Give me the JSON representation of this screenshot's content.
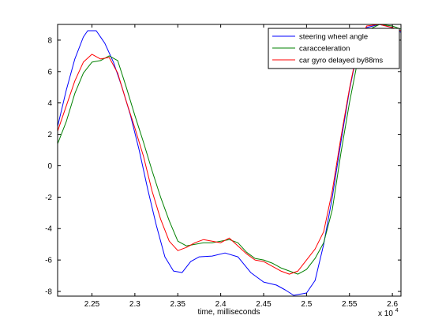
{
  "chart_data": {
    "type": "line",
    "title": "",
    "xlabel": "time, milliseconds",
    "ylabel": "",
    "x_multiplier_label": "x 10",
    "x_multiplier_exponent": "4",
    "xlim": [
      2.21,
      2.61
    ],
    "ylim": [
      -8.3,
      9.0
    ],
    "xticks": [
      "2.25",
      "2.3",
      "2.35",
      "2.4",
      "2.45",
      "2.5",
      "2.55",
      "2.6"
    ],
    "xtick_values": [
      2.25,
      2.3,
      2.35,
      2.4,
      2.45,
      2.5,
      2.55,
      2.6
    ],
    "yticks": [
      "-8",
      "-6",
      "-4",
      "-2",
      "0",
      "2",
      "4",
      "6",
      "8"
    ],
    "ytick_values": [
      -8,
      -6,
      -4,
      -2,
      0,
      2,
      4,
      6,
      8
    ],
    "grid": false,
    "legend_position": "top-right",
    "series": [
      {
        "name": "steering wheel angle",
        "color": "#0000ff",
        "points": [
          [
            2.21,
            2.5
          ],
          [
            2.22,
            4.8
          ],
          [
            2.23,
            6.8
          ],
          [
            2.24,
            8.2
          ],
          [
            2.245,
            8.6
          ],
          [
            2.255,
            8.6
          ],
          [
            2.265,
            7.8
          ],
          [
            2.275,
            6.6
          ],
          [
            2.285,
            5.0
          ],
          [
            2.295,
            3.2
          ],
          [
            2.305,
            1.0
          ],
          [
            2.315,
            -1.5
          ],
          [
            2.325,
            -3.8
          ],
          [
            2.335,
            -5.8
          ],
          [
            2.345,
            -6.7
          ],
          [
            2.355,
            -6.8
          ],
          [
            2.365,
            -6.1
          ],
          [
            2.375,
            -5.8
          ],
          [
            2.39,
            -5.75
          ],
          [
            2.405,
            -5.55
          ],
          [
            2.42,
            -5.8
          ],
          [
            2.435,
            -6.8
          ],
          [
            2.45,
            -7.4
          ],
          [
            2.465,
            -7.6
          ],
          [
            2.475,
            -7.9
          ],
          [
            2.485,
            -8.25
          ],
          [
            2.5,
            -8.1
          ],
          [
            2.51,
            -7.3
          ],
          [
            2.52,
            -5.0
          ],
          [
            2.53,
            -2.0
          ],
          [
            2.54,
            1.5
          ],
          [
            2.55,
            4.8
          ],
          [
            2.56,
            7.5
          ],
          [
            2.57,
            8.8
          ],
          [
            2.585,
            9.0
          ],
          [
            2.6,
            8.8
          ],
          [
            2.61,
            8.5
          ]
        ]
      },
      {
        "name": "caracceleration",
        "color": "#008000",
        "points": [
          [
            2.21,
            1.4
          ],
          [
            2.22,
            2.8
          ],
          [
            2.23,
            4.6
          ],
          [
            2.24,
            5.9
          ],
          [
            2.25,
            6.6
          ],
          [
            2.26,
            6.7
          ],
          [
            2.27,
            7.0
          ],
          [
            2.28,
            6.7
          ],
          [
            2.29,
            5.0
          ],
          [
            2.3,
            3.2
          ],
          [
            2.31,
            1.5
          ],
          [
            2.32,
            -0.3
          ],
          [
            2.33,
            -2.0
          ],
          [
            2.34,
            -3.5
          ],
          [
            2.35,
            -4.8
          ],
          [
            2.36,
            -5.1
          ],
          [
            2.37,
            -5.0
          ],
          [
            2.38,
            -4.9
          ],
          [
            2.39,
            -4.9
          ],
          [
            2.4,
            -4.8
          ],
          [
            2.41,
            -4.7
          ],
          [
            2.42,
            -4.9
          ],
          [
            2.43,
            -5.5
          ],
          [
            2.44,
            -5.9
          ],
          [
            2.45,
            -6.0
          ],
          [
            2.46,
            -6.2
          ],
          [
            2.47,
            -6.5
          ],
          [
            2.48,
            -6.7
          ],
          [
            2.49,
            -6.9
          ],
          [
            2.5,
            -6.6
          ],
          [
            2.51,
            -5.9
          ],
          [
            2.52,
            -4.9
          ],
          [
            2.53,
            -2.8
          ],
          [
            2.54,
            0.8
          ],
          [
            2.55,
            4.0
          ],
          [
            2.56,
            6.8
          ],
          [
            2.57,
            8.6
          ],
          [
            2.585,
            9.0
          ],
          [
            2.6,
            8.9
          ],
          [
            2.61,
            8.7
          ]
        ]
      },
      {
        "name": "car gyro delayed by88ms",
        "color": "#ff0000",
        "points": [
          [
            2.21,
            2.2
          ],
          [
            2.22,
            3.8
          ],
          [
            2.23,
            5.4
          ],
          [
            2.24,
            6.6
          ],
          [
            2.25,
            7.1
          ],
          [
            2.26,
            6.8
          ],
          [
            2.27,
            6.9
          ],
          [
            2.28,
            5.9
          ],
          [
            2.29,
            4.1
          ],
          [
            2.3,
            2.4
          ],
          [
            2.31,
            0.6
          ],
          [
            2.32,
            -1.6
          ],
          [
            2.33,
            -3.4
          ],
          [
            2.34,
            -4.8
          ],
          [
            2.35,
            -5.4
          ],
          [
            2.36,
            -5.2
          ],
          [
            2.37,
            -4.9
          ],
          [
            2.38,
            -4.7
          ],
          [
            2.39,
            -4.8
          ],
          [
            2.4,
            -4.9
          ],
          [
            2.41,
            -4.6
          ],
          [
            2.42,
            -5.1
          ],
          [
            2.43,
            -5.6
          ],
          [
            2.44,
            -6.0
          ],
          [
            2.45,
            -6.1
          ],
          [
            2.46,
            -6.4
          ],
          [
            2.47,
            -6.7
          ],
          [
            2.48,
            -6.9
          ],
          [
            2.49,
            -6.7
          ],
          [
            2.5,
            -6.0
          ],
          [
            2.51,
            -5.3
          ],
          [
            2.52,
            -4.2
          ],
          [
            2.53,
            -1.6
          ],
          [
            2.54,
            1.8
          ],
          [
            2.55,
            4.9
          ],
          [
            2.56,
            7.6
          ],
          [
            2.57,
            8.9
          ],
          [
            2.585,
            9.0
          ],
          [
            2.6,
            8.8
          ],
          [
            2.61,
            8.6
          ]
        ]
      }
    ]
  }
}
